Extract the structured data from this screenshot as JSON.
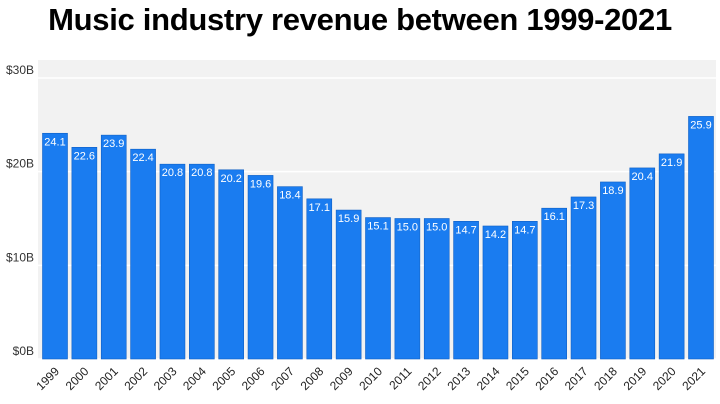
{
  "chart_data": {
    "type": "bar",
    "title": "Music industry revenue between 1999-2021",
    "xlabel": "",
    "ylabel": "",
    "categories": [
      "1999",
      "2000",
      "2001",
      "2002",
      "2003",
      "2004",
      "2005",
      "2006",
      "2007",
      "2008",
      "2009",
      "2010",
      "2011",
      "2012",
      "2013",
      "2014",
      "2015",
      "2016",
      "2017",
      "2018",
      "2019",
      "2020",
      "2021"
    ],
    "values": [
      24.1,
      22.6,
      23.9,
      22.4,
      20.8,
      20.8,
      20.2,
      19.6,
      18.4,
      17.1,
      15.9,
      15.1,
      15.0,
      15.0,
      14.7,
      14.2,
      14.7,
      16.1,
      17.3,
      18.9,
      20.4,
      21.9,
      25.9
    ],
    "value_labels": [
      "24.1",
      "22.6",
      "23.9",
      "22.4",
      "20.8",
      "20.8",
      "20.2",
      "19.6",
      "18.4",
      "17.1",
      "15.9",
      "15.1",
      "15.0",
      "15.0",
      "14.7",
      "14.2",
      "14.7",
      "16.1",
      "17.3",
      "18.9",
      "20.4",
      "21.9",
      "25.9"
    ],
    "ylim": [
      0,
      30
    ],
    "yticks": [
      0,
      10,
      20,
      30
    ],
    "ytick_labels": [
      "$0B",
      "$10B",
      "$20B",
      "$30B"
    ],
    "grid": true,
    "legend": "none"
  },
  "colors": {
    "bar": "#1a7cf0",
    "bar_edge": "#0f5fc4",
    "plot_bg": "#f2f2f2",
    "grid": "#ffffff"
  }
}
